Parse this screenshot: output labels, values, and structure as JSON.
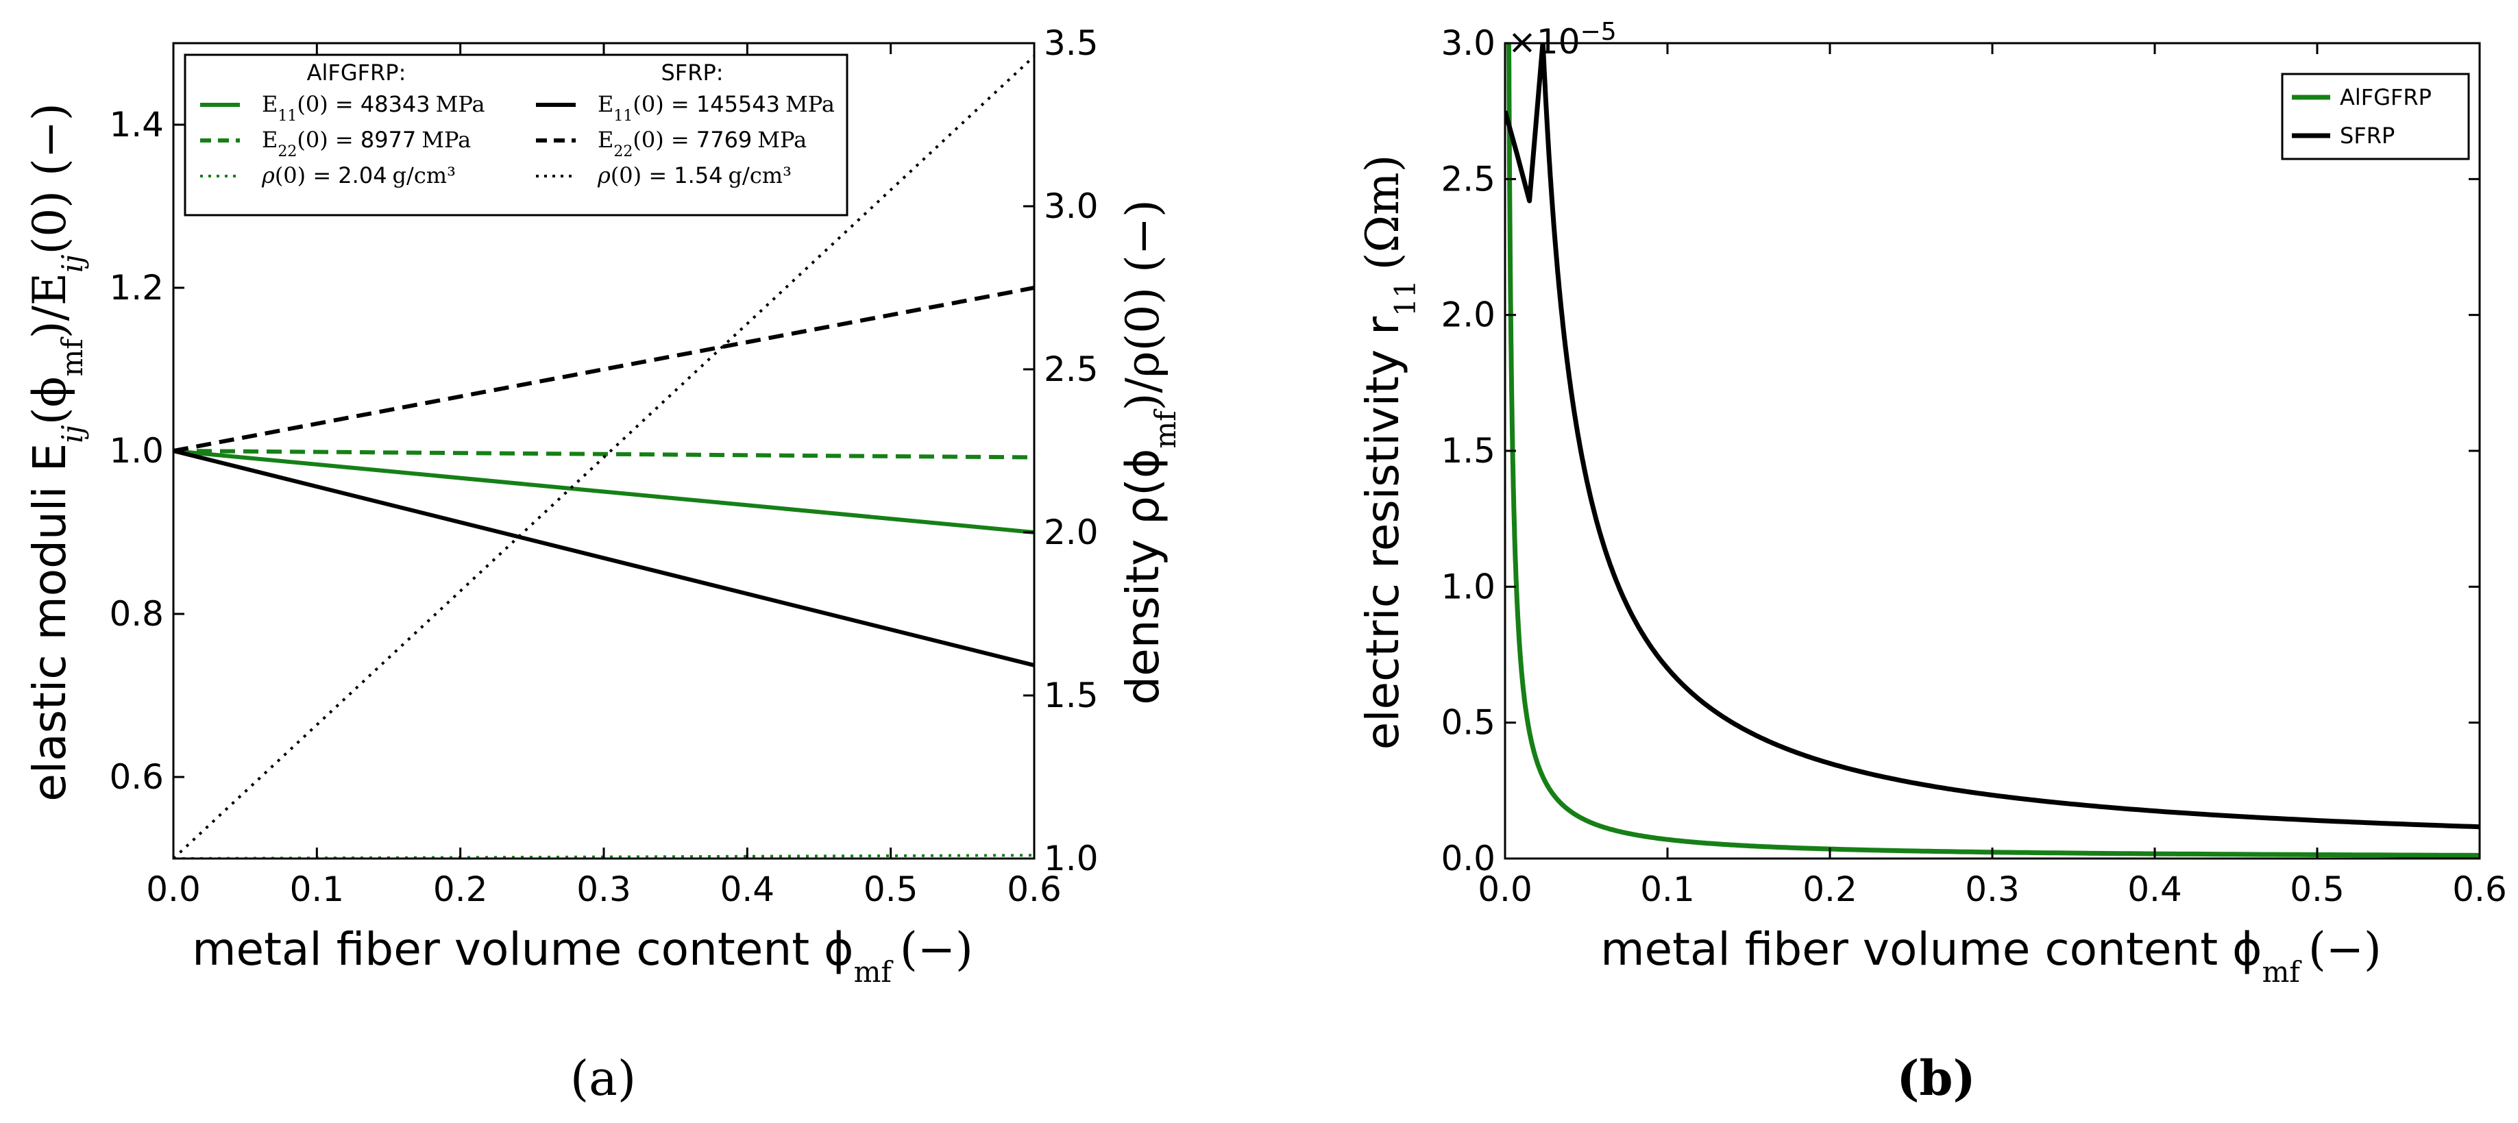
{
  "chart_data": [
    {
      "type": "line",
      "panel_label": "(a)",
      "xlabel": "metal fiber volume content ϕ",
      "xlabel_sub": "mf",
      "xlabel_unit": "(−)",
      "ylabel_left": "elastic moduli E",
      "ylabel_left_parts": [
        "ij",
        "(ϕ",
        "mf",
        ")/E",
        "ij",
        "(0) (−)"
      ],
      "ylabel_right": "density ρ(ϕ",
      "ylabel_right_parts": [
        "mf",
        ")/ρ(0) (−)"
      ],
      "xlim": [
        0.0,
        0.6
      ],
      "ylim_left": [
        0.5,
        1.5
      ],
      "ylim_right": [
        1.0,
        3.5
      ],
      "xticks": [
        "0.0",
        "0.1",
        "0.2",
        "0.3",
        "0.4",
        "0.5",
        "0.6"
      ],
      "yticks_left": [
        "0.6",
        "0.8",
        "1.0",
        "1.2",
        "1.4"
      ],
      "yticks_right": [
        "1.0",
        "1.5",
        "2.0",
        "2.5",
        "3.0",
        "3.5"
      ],
      "legend_location": "top-left",
      "legend_headers": [
        "AlFGFRP:",
        "SFRP:"
      ],
      "series": [
        {
          "name": "E11(0) = 48343 MPa",
          "group": "AlFGFRP",
          "leg_sym": "E",
          "leg_sub": "11",
          "leg_mid": "(0) = ",
          "leg_val": "48343",
          "leg_unit": "MPa",
          "color": "#168016",
          "style": "solid",
          "axis": "left",
          "x": [
            0.0,
            0.6
          ],
          "y": [
            1.0,
            0.9
          ]
        },
        {
          "name": "E22(0) = 8977 MPa",
          "group": "AlFGFRP",
          "leg_sym": "E",
          "leg_sub": "22",
          "leg_mid": "(0) = ",
          "leg_val": "8977",
          "leg_unit": "MPa",
          "color": "#168016",
          "style": "dashed",
          "axis": "left",
          "x": [
            0.0,
            0.6
          ],
          "y": [
            1.0,
            0.992
          ]
        },
        {
          "name": "ρ(0) = 2.04 g/cm3",
          "group": "AlFGFRP",
          "leg_sym": "ρ",
          "leg_sub": "",
          "leg_mid": "(0) = ",
          "leg_val": "2.04",
          "leg_unit": "g/cm³",
          "color": "#168016",
          "style": "dotted",
          "axis": "right",
          "x": [
            0.0,
            0.6
          ],
          "y": [
            1.0,
            1.01
          ]
        },
        {
          "name": "E11(0) = 145543 MPa",
          "group": "SFRP",
          "leg_sym": "E",
          "leg_sub": "11",
          "leg_mid": "(0) = ",
          "leg_val": "145543",
          "leg_unit": "MPa",
          "color": "#000000",
          "style": "solid",
          "axis": "left",
          "x": [
            0.0,
            0.6
          ],
          "y": [
            1.0,
            0.737
          ]
        },
        {
          "name": "E22(0) = 7769 MPa",
          "group": "SFRP",
          "leg_sym": "E",
          "leg_sub": "22",
          "leg_mid": "(0) = ",
          "leg_val": "7769",
          "leg_unit": "MPa",
          "color": "#000000",
          "style": "dashed",
          "axis": "left",
          "x": [
            0.0,
            0.6
          ],
          "y": [
            1.0,
            1.2
          ]
        },
        {
          "name": "ρ(0) = 1.54 g/cm3",
          "group": "SFRP",
          "leg_sym": "ρ",
          "leg_sub": "",
          "leg_mid": "(0) = ",
          "leg_val": "1.54",
          "leg_unit": "g/cm³",
          "color": "#000000",
          "style": "dotted",
          "axis": "right",
          "x": [
            0.0,
            0.6
          ],
          "y": [
            1.0,
            3.46
          ]
        }
      ]
    },
    {
      "type": "line",
      "panel_label": "(b)",
      "xlabel": "metal fiber volume content ϕ",
      "xlabel_sub": "mf",
      "xlabel_unit": "(−)",
      "ylabel": "electric resistivity r",
      "ylabel_sub": "11",
      "ylabel_unit": "(Ωm)",
      "scale_text": "×10",
      "scale_exp": "−5",
      "xlim": [
        0.0,
        0.6
      ],
      "ylim": [
        0.0,
        3e-05
      ],
      "xticks": [
        "0.0",
        "0.1",
        "0.2",
        "0.3",
        "0.4",
        "0.5",
        "0.6"
      ],
      "yticks": [
        "0.0",
        "0.5",
        "1.0",
        "1.5",
        "2.0",
        "2.5",
        "3.0"
      ],
      "legend_location": "top-right",
      "series": [
        {
          "name": "AlFGFRP",
          "color": "#168016",
          "style": "solid",
          "model": "inverse",
          "coef": 7e-08,
          "x_start": 0.0023,
          "x_end": 0.6
        },
        {
          "name": "SFRP",
          "color": "#000000",
          "style": "solid",
          "model": "inverse",
          "coef": 7e-07,
          "x_start": 0.0233,
          "x_end": 0.6,
          "x_prefix": [
            0.0,
            0.007,
            0.015
          ],
          "y_prefix": [
            2.75e-05,
            2.6e-05,
            2.42e-05
          ]
        }
      ]
    }
  ]
}
